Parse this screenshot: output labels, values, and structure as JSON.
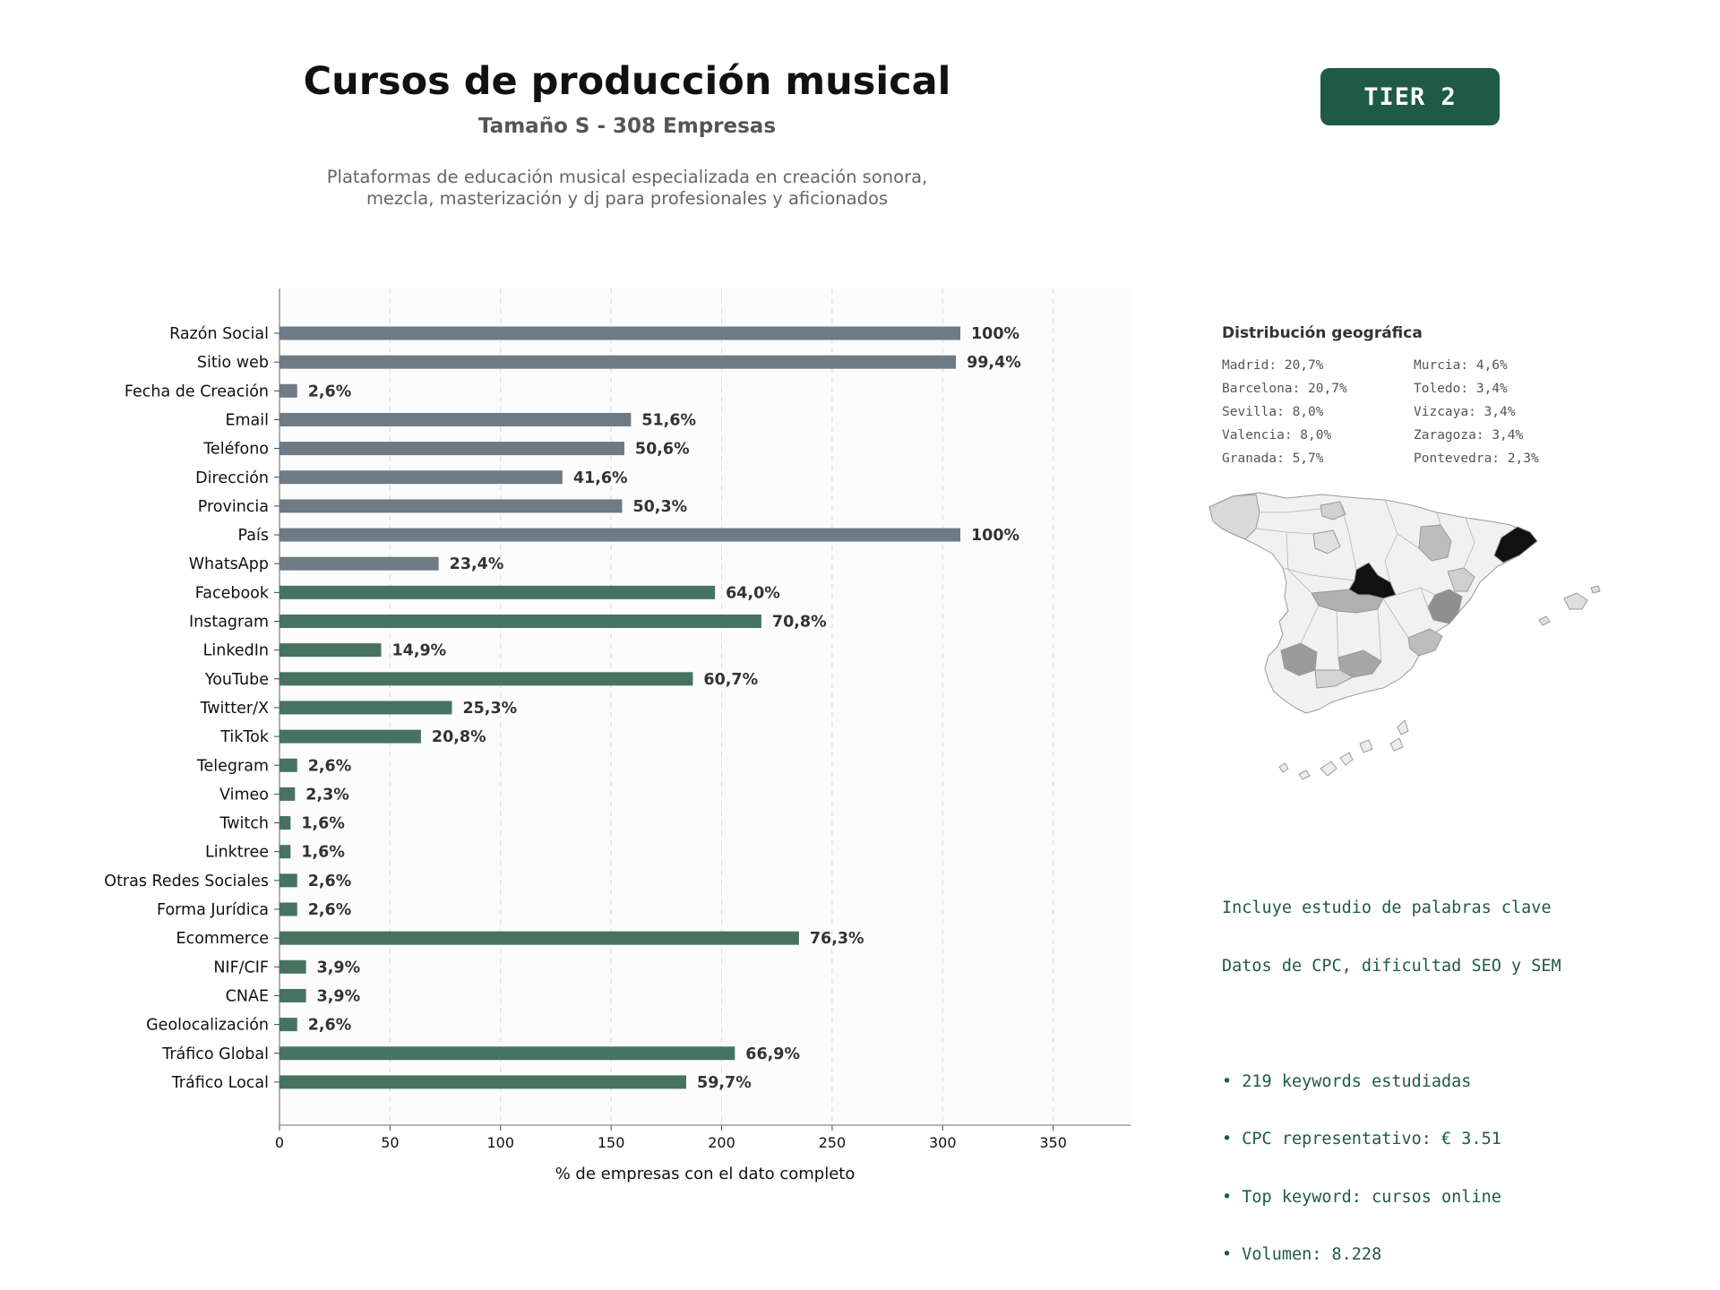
{
  "header": {
    "title": "Cursos de producción musical",
    "subtitle": "Tamaño S - 308 Empresas",
    "description_line1": "Plataformas de educación musical especializada en creación sonora,",
    "description_line2": "mezcla, masterización y dj para profesionales y aficionados",
    "tier": "TIER 2"
  },
  "colors": {
    "gray_bar": "#6e7a84",
    "green_bar": "#46735f",
    "accent": "#1e5a45"
  },
  "chart_data": {
    "type": "bar",
    "orientation": "horizontal",
    "xlabel": "% de empresas con el dato completo",
    "xlim": [
      0,
      385
    ],
    "xticks": [
      0,
      50,
      100,
      150,
      200,
      250,
      300,
      350
    ],
    "grid": true,
    "total_companies": 308,
    "categories": [
      "Razón Social",
      "Sitio web",
      "Fecha de Creación",
      "Email",
      "Teléfono",
      "Dirección",
      "Provincia",
      "País",
      "WhatsApp",
      "Facebook",
      "Instagram",
      "LinkedIn",
      "YouTube",
      "Twitter/X",
      "TikTok",
      "Telegram",
      "Vimeo",
      "Twitch",
      "Linktree",
      "Otras Redes Sociales",
      "Forma Jurídica",
      "Ecommerce",
      "NIF/CIF",
      "CNAE",
      "Geolocalización",
      "Tráfico Global",
      "Tráfico Local"
    ],
    "values": [
      308,
      306,
      8,
      159,
      156,
      128,
      155,
      308,
      72,
      197,
      218,
      46,
      187,
      78,
      64,
      8,
      7,
      5,
      5,
      8,
      8,
      235,
      12,
      12,
      8,
      206,
      184
    ],
    "labels": [
      "100%",
      "99,4%",
      "2,6%",
      "51,6%",
      "50,6%",
      "41,6%",
      "50,3%",
      "100%",
      "23,4%",
      "64,0%",
      "70,8%",
      "14,9%",
      "60,7%",
      "25,3%",
      "20,8%",
      "2,6%",
      "2,3%",
      "1,6%",
      "1,6%",
      "2,6%",
      "2,6%",
      "76,3%",
      "3,9%",
      "3,9%",
      "2,6%",
      "66,9%",
      "59,7%"
    ],
    "groups": [
      "gray",
      "gray",
      "gray",
      "gray",
      "gray",
      "gray",
      "gray",
      "gray",
      "gray",
      "green",
      "green",
      "green",
      "green",
      "green",
      "green",
      "green",
      "green",
      "green",
      "green",
      "green",
      "green",
      "green",
      "green",
      "green",
      "green",
      "green",
      "green"
    ]
  },
  "geo": {
    "title": "Distribución geográfica",
    "left": [
      "Madrid: 20,7%",
      "Barcelona: 20,7%",
      "Sevilla: 8,0%",
      "Valencia: 8,0%",
      "Granada: 5,7%"
    ],
    "right": [
      "Murcia: 4,6%",
      "Toledo: 3,4%",
      "Vizcaya: 3,4%",
      "Zaragoza: 3,4%",
      "Pontevedra: 2,3%"
    ]
  },
  "keywords": {
    "line1": "Incluye estudio de palabras clave",
    "line2": "Datos de CPC, dificultad SEO y SEM",
    "bullet1": "• 219 keywords estudiadas",
    "bullet2": "• CPC representativo: € 3.51",
    "bullet3": "• Top keyword: cursos online",
    "bullet4": "• Volumen: 8.228"
  }
}
